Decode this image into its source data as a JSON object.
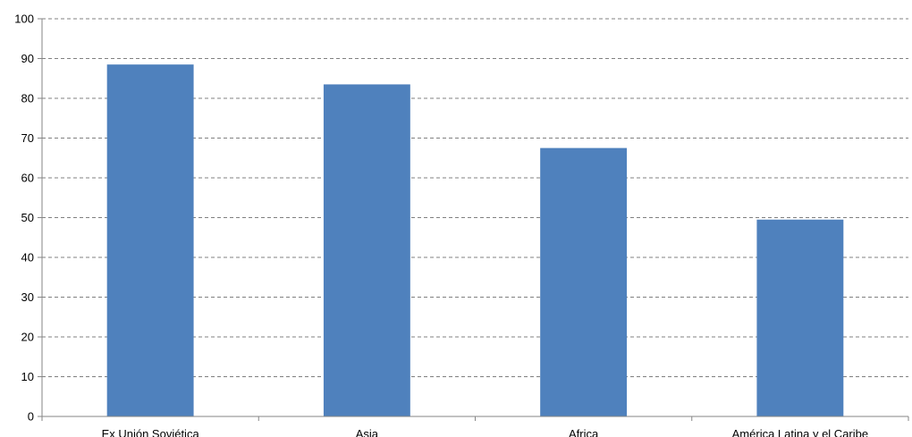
{
  "chart_data": {
    "type": "bar",
    "categories": [
      "Ex Unión Soviética",
      "Asia",
      "Africa",
      "América Latina y el Caribe"
    ],
    "values": [
      88.5,
      83.5,
      67.5,
      49.5
    ],
    "title": "",
    "xlabel": "",
    "ylabel": "",
    "ylim": [
      0,
      100
    ],
    "yticks": [
      "0",
      "10",
      "20",
      "30",
      "40",
      "50",
      "60",
      "70",
      "80",
      "90",
      "100"
    ],
    "grid": true,
    "bar_color": "#4f81bd",
    "grid_color": "#808080"
  }
}
